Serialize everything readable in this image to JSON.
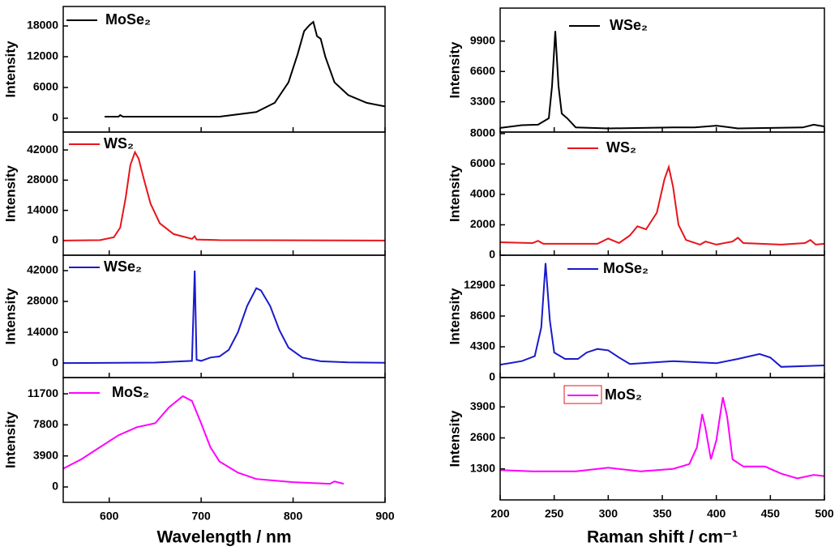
{
  "chart_data": [
    {
      "type": "line",
      "ylabel": "Intensity",
      "xlim": [
        550,
        900
      ],
      "ylim": [
        -2700,
        21800
      ],
      "yticks": [
        0,
        6000,
        12000,
        18000
      ],
      "x": [
        595,
        610,
        612,
        615,
        720,
        760,
        780,
        795,
        805,
        812,
        818,
        822,
        826,
        830,
        835,
        845,
        860,
        880,
        900
      ],
      "series": [
        {
          "name": "MoSe₂",
          "color": "#000000",
          "values": [
            300,
            300,
            600,
            300,
            300,
            1200,
            3000,
            7000,
            12500,
            17000,
            18200,
            18800,
            16000,
            15500,
            12000,
            7000,
            4500,
            3000,
            2300
          ]
        }
      ]
    },
    {
      "type": "line",
      "ylabel": "Intensity",
      "xlim": [
        550,
        900
      ],
      "ylim": [
        -6800,
        50300
      ],
      "yticks": [
        0,
        14000,
        28000,
        42000
      ],
      "x": [
        550,
        590,
        605,
        612,
        618,
        623,
        628,
        632,
        638,
        645,
        655,
        670,
        690,
        693,
        695,
        720,
        900
      ],
      "series": [
        {
          "name": "WS₂",
          "color": "#e8141b",
          "values": [
            0,
            200,
            1500,
            6000,
            20000,
            35000,
            41000,
            38000,
            28000,
            17000,
            8000,
            3000,
            800,
            2000,
            500,
            200,
            0
          ]
        }
      ]
    },
    {
      "type": "line",
      "ylabel": "Intensity",
      "xlim": [
        550,
        900
      ],
      "ylim": [
        -6600,
        49000
      ],
      "yticks": [
        0,
        14000,
        28000,
        42000
      ],
      "x": [
        550,
        650,
        680,
        690,
        693,
        695,
        700,
        710,
        720,
        730,
        740,
        750,
        760,
        765,
        775,
        785,
        795,
        810,
        830,
        860,
        900
      ],
      "series": [
        {
          "name": "WSe₂",
          "color": "#1a1acc",
          "values": [
            0,
            200,
            800,
            1000,
            42000,
            1500,
            1000,
            2500,
            3000,
            6000,
            14000,
            26000,
            34000,
            33000,
            26000,
            15000,
            7000,
            2500,
            800,
            300,
            100
          ]
        }
      ]
    },
    {
      "type": "line",
      "ylabel": "Intensity",
      "xlabel": "Wavelength / nm",
      "xlim": [
        550,
        900
      ],
      "xticks": [
        600,
        700,
        800,
        900
      ],
      "ylim": [
        -1930,
        13740
      ],
      "yticks": [
        0,
        3900,
        7800,
        11700
      ],
      "x": [
        550,
        570,
        590,
        610,
        630,
        650,
        665,
        680,
        690,
        700,
        710,
        720,
        740,
        760,
        800,
        840,
        845,
        855
      ],
      "series": [
        {
          "name": "MoS₂",
          "color": "#ff00ff",
          "values": [
            2300,
            3500,
            5000,
            6500,
            7500,
            8000,
            10000,
            11400,
            10800,
            8000,
            5000,
            3200,
            1800,
            1000,
            600,
            400,
            700,
            400
          ]
        }
      ]
    },
    {
      "type": "line",
      "ylabel": "Intensity",
      "xlim": [
        200,
        500
      ],
      "ylim": [
        0,
        13500
      ],
      "yticks": [
        3300,
        6600,
        9900
      ],
      "x": [
        200,
        220,
        235,
        245,
        248,
        251,
        254,
        257,
        262,
        270,
        300,
        360,
        380,
        400,
        420,
        480,
        490,
        500
      ],
      "series": [
        {
          "name": "WSe₂",
          "color": "#000000",
          "values": [
            450,
            750,
            800,
            1500,
            5000,
            11000,
            5000,
            2000,
            1500,
            500,
            400,
            500,
            500,
            700,
            400,
            500,
            800,
            600
          ]
        }
      ]
    },
    {
      "type": "line",
      "ylabel": "Intensity",
      "xlim": [
        200,
        500
      ],
      "ylim": [
        0,
        8100
      ],
      "yticks": [
        0,
        2000,
        4000,
        6000,
        8000
      ],
      "x": [
        200,
        230,
        235,
        240,
        290,
        300,
        310,
        320,
        327,
        335,
        345,
        352,
        356,
        360,
        365,
        372,
        385,
        390,
        400,
        415,
        420,
        425,
        460,
        482,
        487,
        492,
        500
      ],
      "series": [
        {
          "name": "WS₂",
          "color": "#e8141b",
          "values": [
            850,
            800,
            950,
            750,
            750,
            1100,
            800,
            1300,
            1900,
            1700,
            2800,
            5000,
            5800,
            4500,
            2000,
            1000,
            700,
            900,
            700,
            900,
            1150,
            800,
            700,
            800,
            1000,
            700,
            750
          ]
        }
      ]
    },
    {
      "type": "line",
      "ylabel": "Intensity",
      "xlim": [
        200,
        500
      ],
      "ylim": [
        0,
        17100
      ],
      "yticks": [
        0,
        4300,
        8600,
        12900
      ],
      "x": [
        200,
        220,
        232,
        238,
        242,
        246,
        250,
        260,
        272,
        280,
        290,
        300,
        310,
        320,
        360,
        400,
        420,
        440,
        450,
        460,
        500
      ],
      "series": [
        {
          "name": "MoSe₂",
          "color": "#1a1acc",
          "values": [
            1800,
            2300,
            3000,
            7000,
            16000,
            8000,
            3500,
            2600,
            2600,
            3500,
            4000,
            3800,
            2800,
            1900,
            2300,
            2000,
            2600,
            3300,
            2800,
            1500,
            1700
          ]
        }
      ]
    },
    {
      "type": "line",
      "ylabel": "Intensity",
      "xlabel": "Raman shift / cm⁻¹",
      "xlim": [
        200,
        500
      ],
      "xticks": [
        200,
        250,
        300,
        350,
        400,
        450,
        500
      ],
      "ylim": [
        0,
        5130
      ],
      "yticks": [
        1300,
        2600,
        3900
      ],
      "x": [
        200,
        230,
        270,
        300,
        330,
        360,
        375,
        382,
        387,
        390,
        395,
        400,
        406,
        410,
        415,
        425,
        445,
        460,
        475,
        490,
        500
      ],
      "series": [
        {
          "name": "MoS₂",
          "color": "#ff00ff",
          "values": [
            1250,
            1200,
            1200,
            1350,
            1200,
            1300,
            1500,
            2200,
            3600,
            3000,
            1700,
            2500,
            4300,
            3500,
            1700,
            1400,
            1400,
            1100,
            900,
            1050,
            1000
          ]
        }
      ]
    }
  ]
}
